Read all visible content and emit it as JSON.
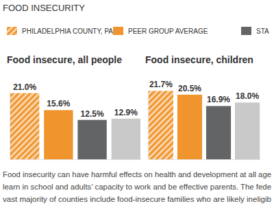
{
  "header": "FOOD INSECURITY",
  "chart_data": [
    {
      "type": "bar",
      "title": "Food insecure, all people",
      "categories": [
        null
      ],
      "legend": "top",
      "data_labels": true,
      "tick_labels": false,
      "ylim": [
        0,
        22
      ],
      "series": [
        {
          "name": "PHILADELPHIA COUNTY, PA",
          "color": "#f0952e",
          "values": [
            21.0
          ],
          "value_labels": [
            "21.0%"
          ]
        },
        {
          "name": "PEER GROUP AVERAGE",
          "color": "#f0952e",
          "values": [
            15.6
          ],
          "value_labels": [
            "15.6%"
          ]
        },
        {
          "name": "STA",
          "color": "#636466",
          "values": [
            12.5
          ],
          "value_labels": [
            "12.5%"
          ]
        },
        {
          "color": "#c9c9c9",
          "values": [
            12.9
          ],
          "value_labels": [
            "12.9%"
          ]
        }
      ]
    },
    {
      "type": "bar",
      "title": "Food insecure, children",
      "categories": [
        null
      ],
      "data_labels": true,
      "tick_labels": false,
      "ylim": [
        0,
        22
      ],
      "series": [
        {
          "color": "#f0952e",
          "values": [
            21.7
          ],
          "value_labels": [
            "21.7%"
          ]
        },
        {
          "color": "#f0952e",
          "values": [
            20.5
          ],
          "value_labels": [
            "20.5%"
          ]
        },
        {
          "color": "#636466",
          "values": [
            16.9
          ],
          "value_labels": [
            "16.9%"
          ]
        },
        {
          "color": "#c9c9c9",
          "values": [
            18.0
          ],
          "value_labels": [
            "18.0%"
          ]
        }
      ]
    }
  ],
  "paragraph": [
    "Food insecurity can have harmful effects on health and development at all age",
    "learn in school and adults’ capacity to work and be effective parents. The fede",
    "vast majority of counties include food-insecure families who are likely ineligib"
  ]
}
